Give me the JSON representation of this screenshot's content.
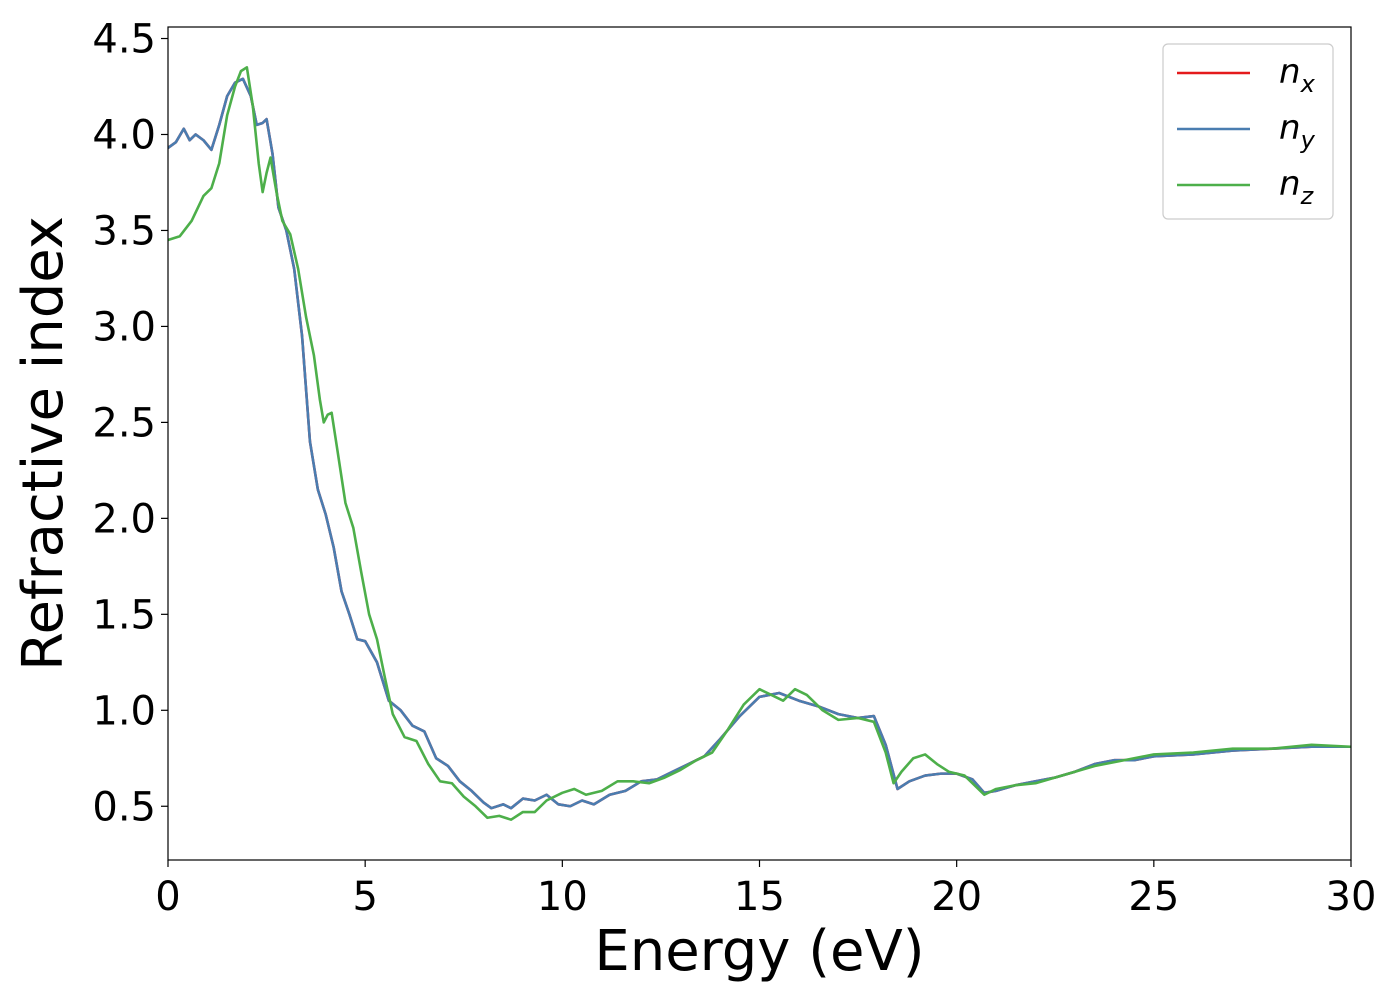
{
  "chart_data": {
    "type": "line",
    "title": "",
    "xlabel": "Energy (eV)",
    "ylabel": "Refractive index",
    "xlim": [
      0,
      30
    ],
    "ylim": [
      0.22,
      4.56
    ],
    "xticks": [
      "0",
      "5",
      "10",
      "15",
      "20",
      "25",
      "30"
    ],
    "yticks": [
      "0.5",
      "1.0",
      "1.5",
      "2.0",
      "2.5",
      "3.0",
      "3.5",
      "4.0",
      "4.5"
    ],
    "grid": false,
    "legend_position": "top-right",
    "series": [
      {
        "name": "n_x",
        "legend_base": "n",
        "legend_sub": "x",
        "color": "#e41a1c",
        "points": [
          [
            0,
            3.93
          ],
          [
            0.2,
            3.96
          ],
          [
            0.4,
            4.03
          ],
          [
            0.55,
            3.97
          ],
          [
            0.7,
            4.0
          ],
          [
            0.9,
            3.97
          ],
          [
            1.1,
            3.92
          ],
          [
            1.3,
            4.05
          ],
          [
            1.5,
            4.2
          ],
          [
            1.7,
            4.27
          ],
          [
            1.9,
            4.29
          ],
          [
            2.1,
            4.2
          ],
          [
            2.25,
            4.05
          ],
          [
            2.4,
            4.06
          ],
          [
            2.5,
            4.08
          ],
          [
            2.65,
            3.9
          ],
          [
            2.8,
            3.62
          ],
          [
            3.0,
            3.5
          ],
          [
            3.2,
            3.3
          ],
          [
            3.4,
            2.95
          ],
          [
            3.6,
            2.4
          ],
          [
            3.8,
            2.15
          ],
          [
            4.0,
            2.02
          ],
          [
            4.2,
            1.85
          ],
          [
            4.4,
            1.62
          ],
          [
            4.6,
            1.5
          ],
          [
            4.8,
            1.37
          ],
          [
            5.0,
            1.36
          ],
          [
            5.3,
            1.25
          ],
          [
            5.6,
            1.05
          ],
          [
            5.9,
            1.0
          ],
          [
            6.2,
            0.92
          ],
          [
            6.5,
            0.89
          ],
          [
            6.8,
            0.75
          ],
          [
            7.1,
            0.71
          ],
          [
            7.4,
            0.63
          ],
          [
            7.7,
            0.58
          ],
          [
            8.0,
            0.52
          ],
          [
            8.2,
            0.49
          ],
          [
            8.5,
            0.51
          ],
          [
            8.7,
            0.49
          ],
          [
            9.0,
            0.54
          ],
          [
            9.3,
            0.53
          ],
          [
            9.6,
            0.56
          ],
          [
            9.9,
            0.51
          ],
          [
            10.2,
            0.5
          ],
          [
            10.5,
            0.53
          ],
          [
            10.8,
            0.51
          ],
          [
            11.2,
            0.56
          ],
          [
            11.6,
            0.58
          ],
          [
            12.0,
            0.63
          ],
          [
            12.4,
            0.64
          ],
          [
            12.8,
            0.68
          ],
          [
            13.2,
            0.72
          ],
          [
            13.6,
            0.76
          ],
          [
            14.0,
            0.85
          ],
          [
            14.5,
            0.97
          ],
          [
            15.0,
            1.07
          ],
          [
            15.5,
            1.09
          ],
          [
            16.0,
            1.05
          ],
          [
            16.5,
            1.02
          ],
          [
            17.0,
            0.98
          ],
          [
            17.5,
            0.96
          ],
          [
            17.9,
            0.97
          ],
          [
            18.2,
            0.82
          ],
          [
            18.5,
            0.59
          ],
          [
            18.8,
            0.63
          ],
          [
            19.2,
            0.66
          ],
          [
            19.6,
            0.67
          ],
          [
            20.0,
            0.67
          ],
          [
            20.4,
            0.64
          ],
          [
            20.7,
            0.57
          ],
          [
            21.0,
            0.58
          ],
          [
            21.5,
            0.61
          ],
          [
            22.0,
            0.63
          ],
          [
            22.5,
            0.65
          ],
          [
            23.0,
            0.68
          ],
          [
            23.5,
            0.72
          ],
          [
            24.0,
            0.74
          ],
          [
            24.5,
            0.74
          ],
          [
            25.0,
            0.76
          ],
          [
            26.0,
            0.77
          ],
          [
            27.0,
            0.79
          ],
          [
            28.0,
            0.8
          ],
          [
            29.0,
            0.81
          ],
          [
            30.0,
            0.81
          ]
        ]
      },
      {
        "name": "n_y",
        "legend_base": "n",
        "legend_sub": "y",
        "color": "#4a7db0",
        "points": [
          [
            0,
            3.93
          ],
          [
            0.2,
            3.96
          ],
          [
            0.4,
            4.03
          ],
          [
            0.55,
            3.97
          ],
          [
            0.7,
            4.0
          ],
          [
            0.9,
            3.97
          ],
          [
            1.1,
            3.92
          ],
          [
            1.3,
            4.05
          ],
          [
            1.5,
            4.2
          ],
          [
            1.7,
            4.27
          ],
          [
            1.9,
            4.29
          ],
          [
            2.1,
            4.2
          ],
          [
            2.25,
            4.05
          ],
          [
            2.4,
            4.06
          ],
          [
            2.5,
            4.08
          ],
          [
            2.65,
            3.9
          ],
          [
            2.8,
            3.62
          ],
          [
            3.0,
            3.5
          ],
          [
            3.2,
            3.3
          ],
          [
            3.4,
            2.95
          ],
          [
            3.6,
            2.4
          ],
          [
            3.8,
            2.15
          ],
          [
            4.0,
            2.02
          ],
          [
            4.2,
            1.85
          ],
          [
            4.4,
            1.62
          ],
          [
            4.6,
            1.5
          ],
          [
            4.8,
            1.37
          ],
          [
            5.0,
            1.36
          ],
          [
            5.3,
            1.25
          ],
          [
            5.6,
            1.05
          ],
          [
            5.9,
            1.0
          ],
          [
            6.2,
            0.92
          ],
          [
            6.5,
            0.89
          ],
          [
            6.8,
            0.75
          ],
          [
            7.1,
            0.71
          ],
          [
            7.4,
            0.63
          ],
          [
            7.7,
            0.58
          ],
          [
            8.0,
            0.52
          ],
          [
            8.2,
            0.49
          ],
          [
            8.5,
            0.51
          ],
          [
            8.7,
            0.49
          ],
          [
            9.0,
            0.54
          ],
          [
            9.3,
            0.53
          ],
          [
            9.6,
            0.56
          ],
          [
            9.9,
            0.51
          ],
          [
            10.2,
            0.5
          ],
          [
            10.5,
            0.53
          ],
          [
            10.8,
            0.51
          ],
          [
            11.2,
            0.56
          ],
          [
            11.6,
            0.58
          ],
          [
            12.0,
            0.63
          ],
          [
            12.4,
            0.64
          ],
          [
            12.8,
            0.68
          ],
          [
            13.2,
            0.72
          ],
          [
            13.6,
            0.76
          ],
          [
            14.0,
            0.85
          ],
          [
            14.5,
            0.97
          ],
          [
            15.0,
            1.07
          ],
          [
            15.5,
            1.09
          ],
          [
            16.0,
            1.05
          ],
          [
            16.5,
            1.02
          ],
          [
            17.0,
            0.98
          ],
          [
            17.5,
            0.96
          ],
          [
            17.9,
            0.97
          ],
          [
            18.2,
            0.82
          ],
          [
            18.5,
            0.59
          ],
          [
            18.8,
            0.63
          ],
          [
            19.2,
            0.66
          ],
          [
            19.6,
            0.67
          ],
          [
            20.0,
            0.67
          ],
          [
            20.4,
            0.64
          ],
          [
            20.7,
            0.57
          ],
          [
            21.0,
            0.58
          ],
          [
            21.5,
            0.61
          ],
          [
            22.0,
            0.63
          ],
          [
            22.5,
            0.65
          ],
          [
            23.0,
            0.68
          ],
          [
            23.5,
            0.72
          ],
          [
            24.0,
            0.74
          ],
          [
            24.5,
            0.74
          ],
          [
            25.0,
            0.76
          ],
          [
            26.0,
            0.77
          ],
          [
            27.0,
            0.79
          ],
          [
            28.0,
            0.8
          ],
          [
            29.0,
            0.81
          ],
          [
            30.0,
            0.81
          ]
        ]
      },
      {
        "name": "n_z",
        "legend_base": "n",
        "legend_sub": "z",
        "color": "#4daf4a",
        "points": [
          [
            0,
            3.45
          ],
          [
            0.3,
            3.47
          ],
          [
            0.6,
            3.55
          ],
          [
            0.9,
            3.68
          ],
          [
            1.1,
            3.72
          ],
          [
            1.3,
            3.85
          ],
          [
            1.5,
            4.1
          ],
          [
            1.7,
            4.25
          ],
          [
            1.85,
            4.33
          ],
          [
            2.0,
            4.35
          ],
          [
            2.15,
            4.15
          ],
          [
            2.3,
            3.85
          ],
          [
            2.4,
            3.7
          ],
          [
            2.5,
            3.8
          ],
          [
            2.6,
            3.88
          ],
          [
            2.75,
            3.7
          ],
          [
            2.9,
            3.55
          ],
          [
            3.1,
            3.48
          ],
          [
            3.3,
            3.3
          ],
          [
            3.5,
            3.05
          ],
          [
            3.7,
            2.85
          ],
          [
            3.85,
            2.62
          ],
          [
            3.95,
            2.5
          ],
          [
            4.05,
            2.54
          ],
          [
            4.15,
            2.55
          ],
          [
            4.3,
            2.35
          ],
          [
            4.5,
            2.08
          ],
          [
            4.7,
            1.95
          ],
          [
            4.9,
            1.72
          ],
          [
            5.1,
            1.5
          ],
          [
            5.3,
            1.37
          ],
          [
            5.5,
            1.17
          ],
          [
            5.7,
            0.98
          ],
          [
            6.0,
            0.86
          ],
          [
            6.3,
            0.84
          ],
          [
            6.6,
            0.72
          ],
          [
            6.9,
            0.63
          ],
          [
            7.2,
            0.62
          ],
          [
            7.5,
            0.55
          ],
          [
            7.8,
            0.5
          ],
          [
            8.1,
            0.44
          ],
          [
            8.4,
            0.45
          ],
          [
            8.7,
            0.43
          ],
          [
            9.0,
            0.47
          ],
          [
            9.3,
            0.47
          ],
          [
            9.6,
            0.53
          ],
          [
            10.0,
            0.57
          ],
          [
            10.3,
            0.59
          ],
          [
            10.6,
            0.56
          ],
          [
            11.0,
            0.58
          ],
          [
            11.4,
            0.63
          ],
          [
            11.8,
            0.63
          ],
          [
            12.2,
            0.62
          ],
          [
            12.6,
            0.65
          ],
          [
            13.0,
            0.69
          ],
          [
            13.4,
            0.74
          ],
          [
            13.8,
            0.78
          ],
          [
            14.2,
            0.9
          ],
          [
            14.6,
            1.03
          ],
          [
            15.0,
            1.11
          ],
          [
            15.3,
            1.08
          ],
          [
            15.6,
            1.05
          ],
          [
            15.9,
            1.11
          ],
          [
            16.2,
            1.08
          ],
          [
            16.6,
            1.0
          ],
          [
            17.0,
            0.95
          ],
          [
            17.5,
            0.96
          ],
          [
            17.9,
            0.94
          ],
          [
            18.2,
            0.78
          ],
          [
            18.4,
            0.62
          ],
          [
            18.6,
            0.68
          ],
          [
            18.9,
            0.75
          ],
          [
            19.2,
            0.77
          ],
          [
            19.5,
            0.72
          ],
          [
            19.8,
            0.68
          ],
          [
            20.2,
            0.66
          ],
          [
            20.7,
            0.56
          ],
          [
            21.0,
            0.59
          ],
          [
            21.5,
            0.61
          ],
          [
            22.0,
            0.62
          ],
          [
            22.5,
            0.65
          ],
          [
            23.0,
            0.68
          ],
          [
            23.5,
            0.71
          ],
          [
            24.0,
            0.73
          ],
          [
            24.5,
            0.75
          ],
          [
            25.0,
            0.77
          ],
          [
            26.0,
            0.78
          ],
          [
            27.0,
            0.8
          ],
          [
            28.0,
            0.8
          ],
          [
            29.0,
            0.82
          ],
          [
            30.0,
            0.81
          ]
        ]
      }
    ]
  }
}
